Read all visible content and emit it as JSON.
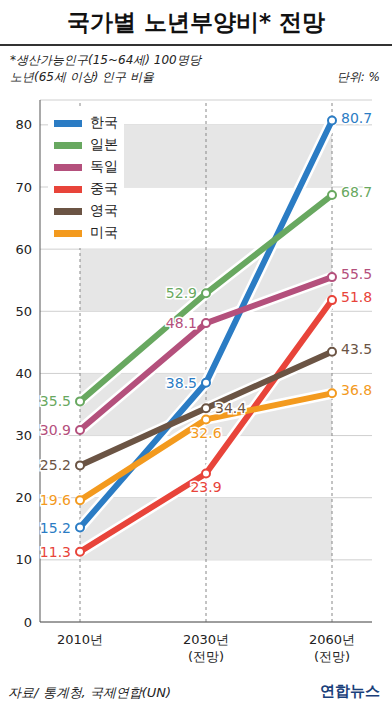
{
  "chart_data": {
    "type": "line",
    "title": "국가별 노년부양비* 전망",
    "subtitle": "*생산가능인구(15~64세) 100명당\n노년(65세 이상) 인구 비율",
    "unit_label": "단위: %",
    "source": "자료/ 통계청, 국제연합(UN)",
    "credit": "연합뉴스",
    "categories": [
      "2010년",
      "2030년\n(전망)",
      "2060년\n(전망)"
    ],
    "series": [
      {
        "name": "한국",
        "color": "#2b7cc4",
        "values": [
          15.2,
          38.5,
          80.7
        ]
      },
      {
        "name": "일본",
        "color": "#68a860",
        "values": [
          35.5,
          52.9,
          68.7
        ]
      },
      {
        "name": "독일",
        "color": "#b4507c",
        "values": [
          30.9,
          48.1,
          55.5
        ]
      },
      {
        "name": "중국",
        "color": "#e8443a",
        "values": [
          11.3,
          23.9,
          51.8
        ]
      },
      {
        "name": "영국",
        "color": "#6b5444",
        "values": [
          25.2,
          34.4,
          43.5
        ]
      },
      {
        "name": "미국",
        "color": "#f39a1e",
        "values": [
          19.6,
          32.6,
          36.8
        ]
      }
    ],
    "ylim": [
      0,
      84
    ],
    "yticks": [
      0,
      10,
      20,
      30,
      40,
      50,
      60,
      70,
      80
    ],
    "grid": true,
    "legend": "upper left",
    "data_labels": true
  }
}
